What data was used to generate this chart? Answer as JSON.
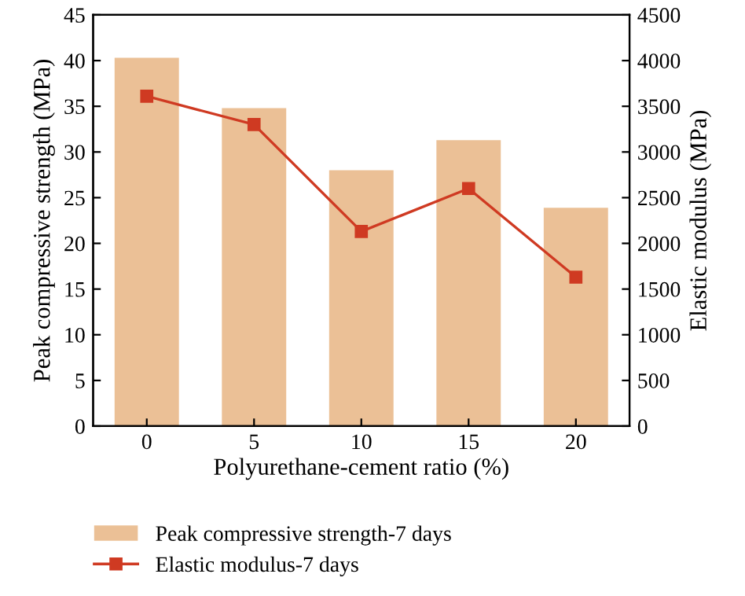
{
  "chart_data": {
    "type": "bar",
    "xlabel": "Polyurethane-cement ratio (%)",
    "ylabel": "Peak compressive strength (MPa)",
    "y2label": "Elastic modulus (MPa)",
    "categories": [
      "0",
      "5",
      "10",
      "15",
      "20"
    ],
    "series": [
      {
        "name": "Peak compressive strength-7 days",
        "color": "#ebc096",
        "values": [
          40.3,
          34.8,
          28.0,
          31.3,
          23.9
        ]
      },
      {
        "name": "Elastic modulus-7 days",
        "type": "line",
        "axis": "y2",
        "color": "#cf3a22",
        "marker": "square",
        "values": [
          3610,
          3300,
          2130,
          2600,
          1630
        ]
      }
    ],
    "ylim": [
      0,
      45
    ],
    "yticks": [
      0,
      5,
      10,
      15,
      20,
      25,
      30,
      35,
      40,
      45
    ],
    "y2lim": [
      0,
      4500
    ],
    "y2ticks": [
      0,
      500,
      1000,
      1500,
      2000,
      2500,
      3000,
      3500,
      4000,
      4500
    ],
    "grid": false,
    "legend": "bottom"
  }
}
